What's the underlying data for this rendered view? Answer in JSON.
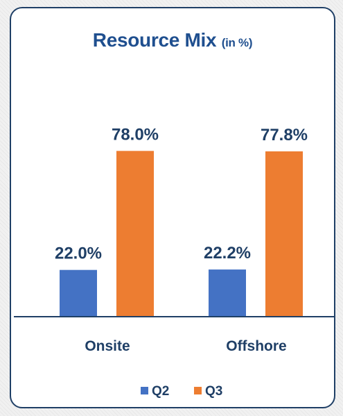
{
  "chart_data": {
    "type": "bar",
    "title": "Resource Mix",
    "subtitle": "(in %)",
    "categories": [
      "Onsite",
      "Offshore"
    ],
    "series": [
      {
        "name": "Q2",
        "values": [
          22.0,
          22.2
        ],
        "labels": [
          "22.0%",
          "22.2%"
        ],
        "color": "#4472c4"
      },
      {
        "name": "Q3",
        "values": [
          78.0,
          77.8
        ],
        "labels": [
          "78.0%",
          "77.8%"
        ],
        "color": "#ed7d31"
      }
    ],
    "ylim": [
      0,
      100
    ],
    "grid": false,
    "legend": "bottom",
    "axis_color": "#1f3f66"
  }
}
